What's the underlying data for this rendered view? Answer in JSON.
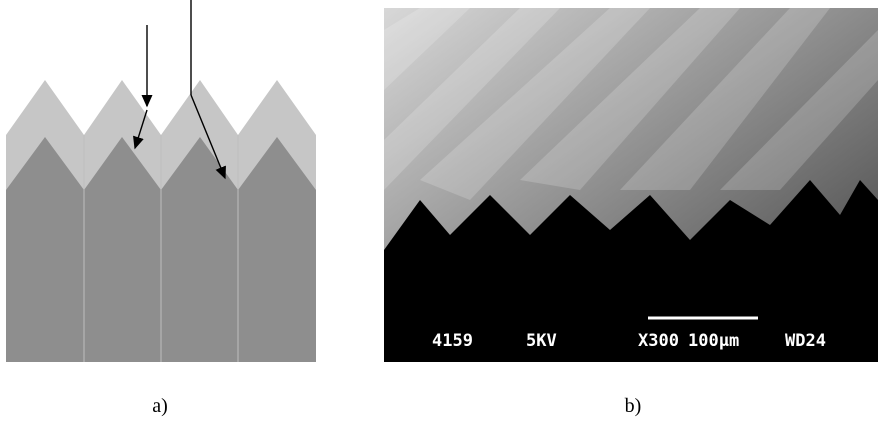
{
  "panels": [
    {
      "label": "a)"
    },
    {
      "label": "b)",
      "image_text": [
        "4159",
        "5KV",
        "X300",
        "100µm",
        "WD24"
      ]
    }
  ]
}
